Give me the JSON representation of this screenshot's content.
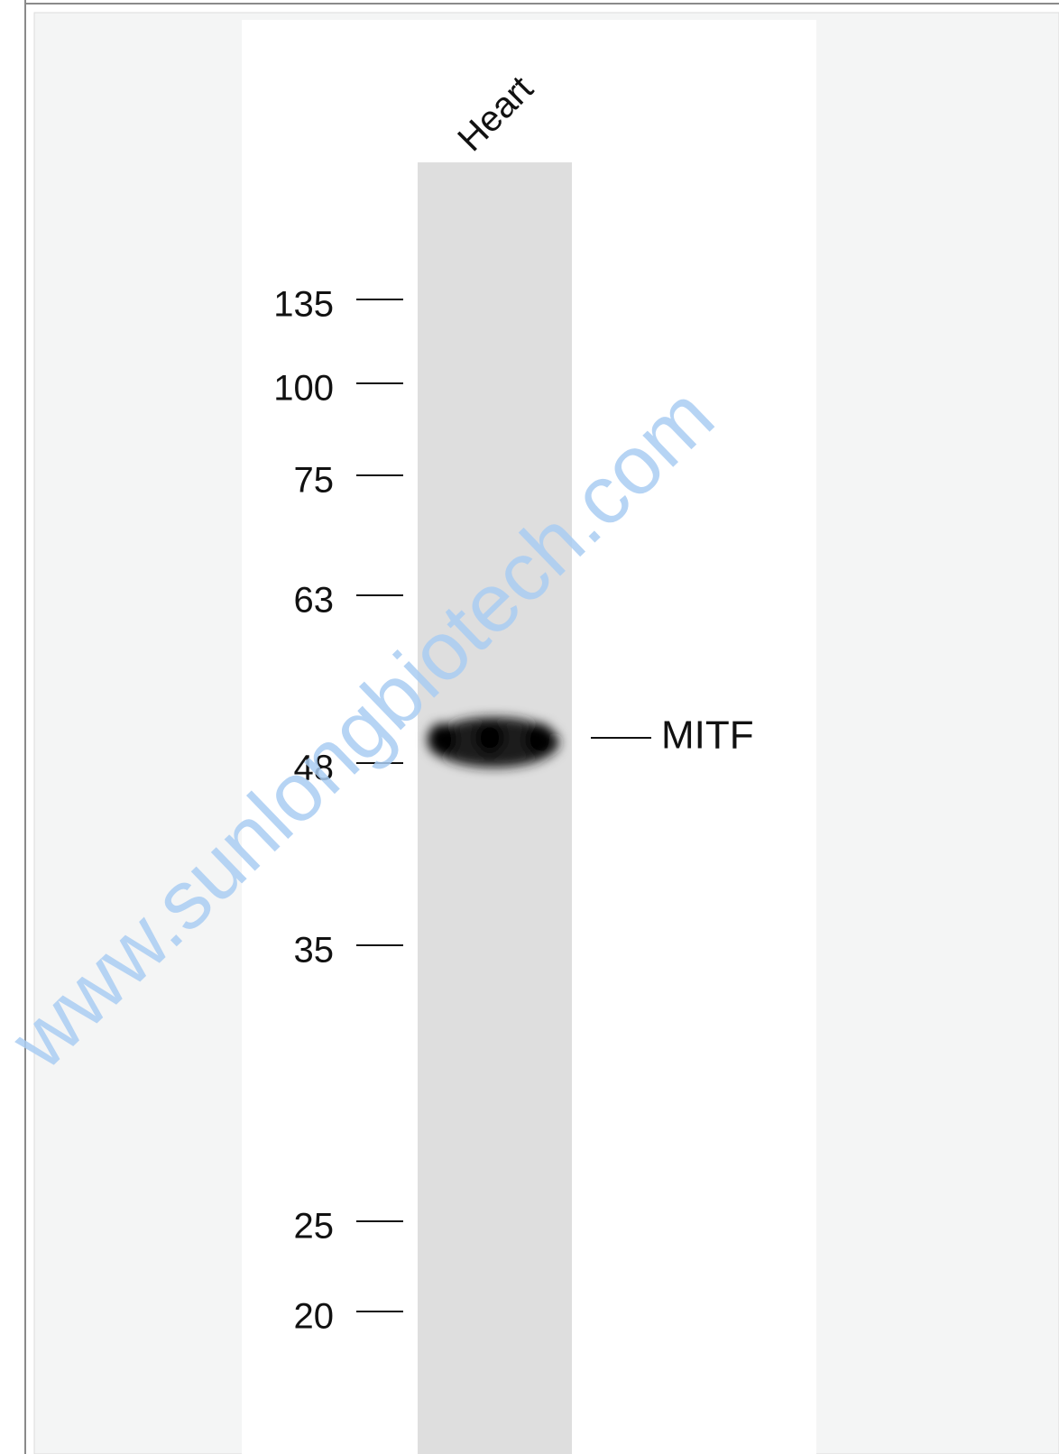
{
  "blot": {
    "lane_label": "Heart",
    "markers": [
      "135",
      "100",
      "75",
      "63",
      "48",
      "35",
      "25",
      "20"
    ],
    "band_label": "MITF",
    "watermark": "www.sunlongbiotech.com"
  }
}
